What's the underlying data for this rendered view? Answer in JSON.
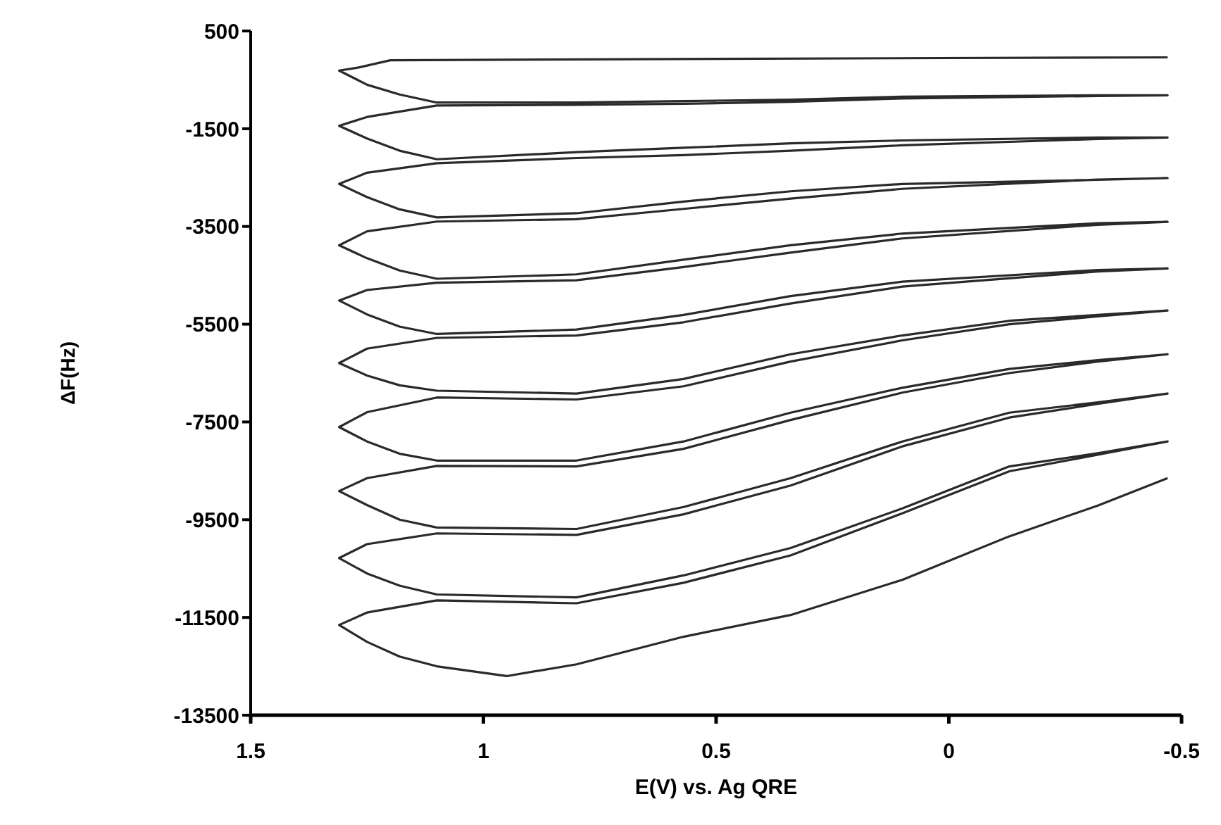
{
  "chart_data": {
    "type": "line",
    "xlabel": "E(V) vs. Ag QRE",
    "ylabel": "ΔF(Hz)",
    "xlim": [
      1.5,
      -0.5
    ],
    "xticks": [
      1.5,
      1,
      0.5,
      0,
      -0.5
    ],
    "ylim": [
      -13500,
      500
    ],
    "yticks": [
      -13500,
      -11500,
      -9500,
      -7500,
      -5500,
      -3500,
      -1500,
      500
    ],
    "grid": false,
    "legend": false,
    "marker": "none",
    "line_style": "solid",
    "color": "#2a2a2a",
    "x": [
      -0.47,
      0.5,
      1.2,
      1.27,
      1.31,
      1.25,
      1.18,
      1.1,
      0.8,
      0.57,
      0.34,
      0.1,
      -0.32,
      -0.47,
      -0.32,
      0.1,
      0.34,
      0.57,
      0.8,
      1.1,
      1.25,
      1.31,
      1.25,
      1.18,
      1.1,
      0.8,
      0.57,
      0.34,
      0.1,
      -0.32,
      -0.47,
      -0.32,
      0.1,
      0.34,
      0.57,
      0.8,
      1.1,
      1.25,
      1.31,
      1.25,
      1.18,
      1.1,
      0.8,
      0.57,
      0.34,
      0.1,
      -0.32,
      -0.47,
      -0.32,
      0.1,
      0.34,
      0.57,
      0.8,
      1.1,
      1.25,
      1.31,
      1.25,
      1.18,
      1.1,
      0.8,
      0.57,
      0.34,
      0.1,
      -0.32,
      -0.47,
      -0.32,
      0.1,
      0.34,
      0.57,
      0.8,
      1.1,
      1.25,
      1.31,
      1.25,
      1.18,
      1.1,
      0.8,
      0.57,
      0.34,
      0.1,
      -0.32,
      -0.47,
      -0.32,
      0.1,
      0.34,
      0.57,
      0.8,
      1.1,
      1.25,
      1.31,
      1.25,
      1.18,
      1.1,
      0.8,
      0.57,
      0.34,
      0.1,
      -0.13,
      -0.32,
      -0.47,
      -0.32,
      -0.13,
      0.1,
      0.34,
      0.57,
      0.8,
      1.1,
      1.25,
      1.31,
      1.25,
      1.18,
      1.1,
      0.8,
      0.57,
      0.34,
      0.1,
      -0.13,
      -0.32,
      -0.47,
      -0.32,
      -0.13,
      0.1,
      0.34,
      0.57,
      0.8,
      1.1,
      1.25,
      1.31,
      1.25,
      1.18,
      1.1,
      0.8,
      0.57,
      0.34,
      0.1,
      -0.13,
      -0.32,
      -0.47,
      -0.32,
      -0.13,
      0.1,
      0.34,
      0.57,
      0.8,
      1.1,
      1.25,
      1.31,
      1.25,
      1.18,
      1.1,
      0.8,
      0.57,
      0.34,
      0.1,
      -0.13,
      -0.32,
      -0.47,
      -0.32,
      -0.13,
      0.1,
      0.34,
      0.57,
      0.8,
      1.1,
      1.25,
      1.31,
      1.25,
      1.18,
      1.1,
      0.95,
      0.8,
      0.57,
      0.34,
      0.1,
      -0.13,
      -0.32,
      -0.47
    ],
    "values": [
      -40,
      -70,
      -100,
      -250,
      -310,
      -600,
      -800,
      -965,
      -965,
      -935,
      -905,
      -845,
      -815,
      -815,
      -830,
      -880,
      -950,
      -990,
      -1010,
      -1025,
      -1260,
      -1440,
      -1700,
      -1950,
      -2125,
      -1980,
      -1890,
      -1800,
      -1740,
      -1680,
      -1680,
      -1710,
      -1840,
      -1950,
      -2040,
      -2100,
      -2205,
      -2400,
      -2630,
      -2900,
      -3150,
      -3315,
      -3230,
      -2990,
      -2780,
      -2630,
      -2545,
      -2510,
      -2540,
      -2730,
      -2930,
      -3140,
      -3350,
      -3400,
      -3600,
      -3885,
      -4150,
      -4400,
      -4570,
      -4480,
      -4180,
      -3885,
      -3645,
      -3435,
      -3405,
      -3465,
      -3745,
      -4035,
      -4330,
      -4600,
      -4650,
      -4800,
      -5015,
      -5300,
      -5550,
      -5700,
      -5610,
      -5310,
      -4925,
      -4630,
      -4390,
      -4360,
      -4420,
      -4730,
      -5075,
      -5460,
      -5730,
      -5780,
      -6000,
      -6295,
      -6550,
      -6750,
      -6860,
      -6920,
      -6620,
      -6115,
      -5730,
      -5430,
      -5310,
      -5220,
      -5340,
      -5500,
      -5830,
      -6265,
      -6770,
      -7040,
      -7000,
      -7300,
      -7605,
      -7900,
      -8150,
      -8290,
      -8290,
      -7900,
      -7310,
      -6800,
      -6415,
      -6235,
      -6115,
      -6265,
      -6500,
      -6900,
      -7460,
      -8050,
      -8410,
      -8400,
      -8650,
      -8915,
      -9200,
      -9500,
      -9660,
      -9690,
      -9240,
      -8650,
      -7900,
      -7310,
      -7100,
      -6920,
      -7130,
      -7410,
      -8000,
      -8800,
      -9390,
      -9810,
      -9780,
      -10000,
      -10285,
      -10600,
      -10850,
      -11030,
      -11090,
      -10640,
      -10080,
      -9270,
      -8410,
      -8140,
      -7900,
      -8170,
      -8510,
      -9370,
      -10230,
      -10790,
      -11210,
      -11150,
      -11400,
      -11655,
      -12000,
      -12300,
      -12500,
      -12700,
      -12460,
      -11895,
      -11450,
      -10730,
      -9840,
      -9210,
      -8650
    ]
  }
}
